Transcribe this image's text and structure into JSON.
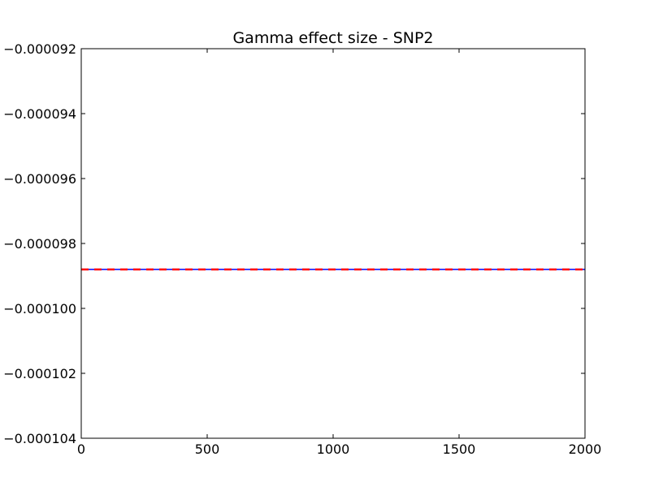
{
  "chart_data": {
    "type": "line",
    "title": "Gamma effect size - SNP2",
    "xlabel": "",
    "ylabel": "",
    "xlim": [
      0,
      2000
    ],
    "ylim": [
      -0.000104,
      -9.2e-05
    ],
    "x_ticks": [
      0,
      500,
      1000,
      1500,
      2000
    ],
    "x_tick_labels": [
      "0",
      "500",
      "1000",
      "1500",
      "2000"
    ],
    "y_ticks": [
      -9.2e-05,
      -9.4e-05,
      -9.6e-05,
      -9.8e-05,
      -0.0001,
      -0.000102,
      -0.000104
    ],
    "y_tick_labels": [
      "−0.000092",
      "−0.000094",
      "−0.000096",
      "−0.000098",
      "−0.000100",
      "−0.000102",
      "−0.000104"
    ],
    "grid": false,
    "series": [
      {
        "x": [
          0,
          2000
        ],
        "y": [
          -9.88e-05,
          -9.88e-05
        ],
        "color": "#0000ff",
        "style": "solid"
      },
      {
        "x": [
          0,
          2000
        ],
        "y": [
          -9.88e-05,
          -9.88e-05
        ],
        "color": "#ff0000",
        "style": "dashed"
      }
    ]
  }
}
